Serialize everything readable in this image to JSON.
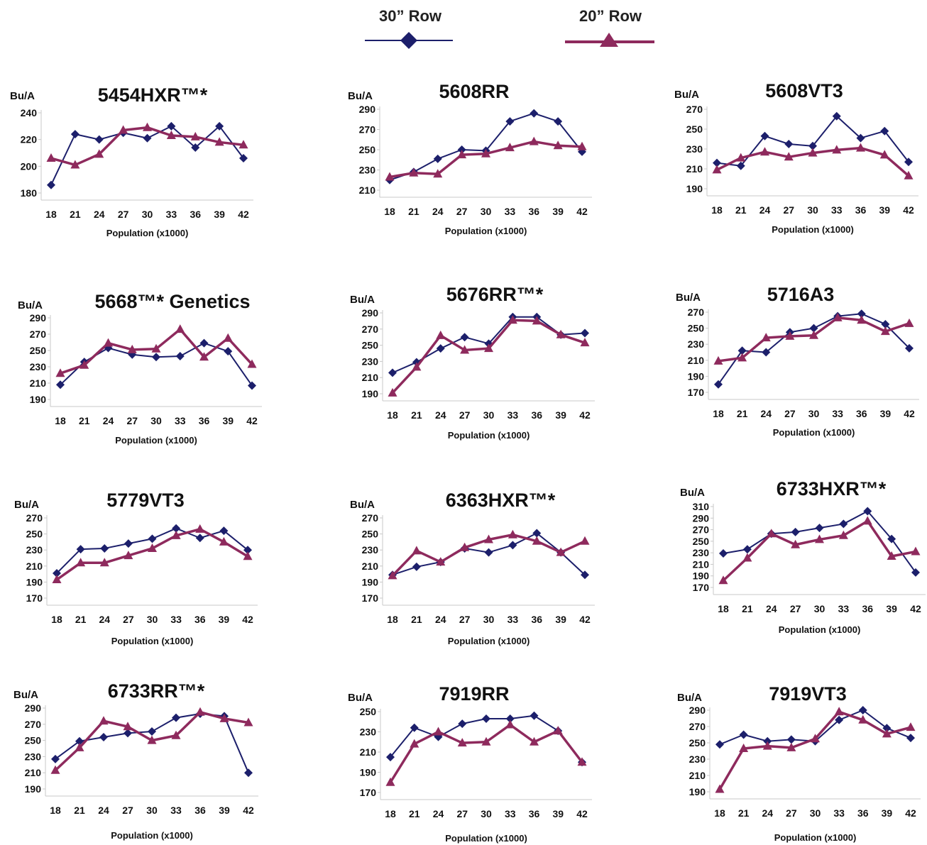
{
  "legend": {
    "items": [
      {
        "label": "30” Row",
        "color": "#1c1f6b",
        "marker": "diamond"
      },
      {
        "label": "20” Row",
        "color": "#8e2a5d",
        "marker": "triangle"
      }
    ]
  },
  "chart_data": [
    {
      "type": "line",
      "title": "5454HXR™*",
      "ylabel": "Bu/A",
      "xlabel": "Population (x1000)",
      "categories": [
        "18",
        "21",
        "24",
        "27",
        "30",
        "33",
        "36",
        "39",
        "42"
      ],
      "yticks": [
        180,
        200,
        220,
        240
      ],
      "ylim": [
        180,
        240
      ],
      "series": [
        {
          "name": "30” Row",
          "values": [
            186,
            224,
            220,
            225,
            221,
            230,
            214,
            230,
            206
          ]
        },
        {
          "name": "20” Row",
          "values": [
            206,
            201,
            209,
            227,
            229,
            223,
            222,
            218,
            216
          ]
        }
      ]
    },
    {
      "type": "line",
      "title": "5608RR",
      "ylabel": "Bu/A",
      "xlabel": "Population (x1000)",
      "categories": [
        "18",
        "21",
        "24",
        "27",
        "30",
        "33",
        "36",
        "39",
        "42"
      ],
      "yticks": [
        210,
        230,
        250,
        270,
        290
      ],
      "ylim": [
        210,
        290
      ],
      "series": [
        {
          "name": "30” Row",
          "values": [
            220,
            228,
            241,
            250,
            249,
            278,
            286,
            278,
            248
          ]
        },
        {
          "name": "20” Row",
          "values": [
            223,
            227,
            226,
            245,
            246,
            252,
            258,
            254,
            253
          ]
        }
      ]
    },
    {
      "type": "line",
      "title": "5608VT3",
      "ylabel": "Bu/A",
      "xlabel": "Population (x1000)",
      "categories": [
        "18",
        "21",
        "24",
        "27",
        "30",
        "33",
        "36",
        "39",
        "42"
      ],
      "yticks": [
        190,
        210,
        230,
        250,
        270
      ],
      "ylim": [
        190,
        270
      ],
      "series": [
        {
          "name": "30” Row",
          "values": [
            216,
            213,
            243,
            235,
            233,
            263,
            241,
            248,
            217
          ]
        },
        {
          "name": "20” Row",
          "values": [
            209,
            221,
            227,
            222,
            226,
            229,
            231,
            224,
            203
          ]
        }
      ]
    },
    {
      "type": "line",
      "title": "5668™* Genetics",
      "ylabel": "Bu/A",
      "xlabel": "Population (x1000)",
      "categories": [
        "18",
        "21",
        "24",
        "27",
        "30",
        "33",
        "36",
        "39",
        "42"
      ],
      "yticks": [
        190,
        210,
        230,
        250,
        270,
        290
      ],
      "ylim": [
        190,
        290
      ],
      "series": [
        {
          "name": "30” Row",
          "values": [
            208,
            236,
            253,
            245,
            242,
            243,
            259,
            249,
            207
          ]
        },
        {
          "name": "20” Row",
          "values": [
            222,
            232,
            259,
            251,
            252,
            276,
            242,
            265,
            233
          ]
        }
      ]
    },
    {
      "type": "line",
      "title": "5676RR™*",
      "ylabel": "Bu/A",
      "xlabel": "Population (x1000)",
      "categories": [
        "18",
        "21",
        "24",
        "27",
        "30",
        "33",
        "36",
        "39",
        "42"
      ],
      "yticks": [
        190,
        210,
        230,
        250,
        270,
        290
      ],
      "ylim": [
        190,
        290
      ],
      "series": [
        {
          "name": "30” Row",
          "values": [
            216,
            229,
            246,
            260,
            252,
            285,
            285,
            263,
            265
          ]
        },
        {
          "name": "20” Row",
          "values": [
            191,
            223,
            262,
            244,
            246,
            281,
            280,
            263,
            253
          ]
        }
      ]
    },
    {
      "type": "line",
      "title": "5716A3",
      "ylabel": "Bu/A",
      "xlabel": "Population (x1000)",
      "categories": [
        "18",
        "21",
        "24",
        "27",
        "30",
        "33",
        "36",
        "39",
        "42"
      ],
      "yticks": [
        170,
        190,
        210,
        230,
        250,
        270
      ],
      "ylim": [
        170,
        270
      ],
      "series": [
        {
          "name": "30” Row",
          "values": [
            180,
            222,
            220,
            245,
            250,
            265,
            268,
            255,
            225
          ]
        },
        {
          "name": "20” Row",
          "values": [
            209,
            213,
            238,
            240,
            241,
            263,
            260,
            246,
            256
          ]
        }
      ]
    },
    {
      "type": "line",
      "title": "5779VT3",
      "ylabel": "Bu/A",
      "xlabel": "Population (x1000)",
      "categories": [
        "18",
        "21",
        "24",
        "27",
        "30",
        "33",
        "36",
        "39",
        "42"
      ],
      "yticks": [
        170,
        190,
        210,
        230,
        250,
        270
      ],
      "ylim": [
        170,
        270
      ],
      "series": [
        {
          "name": "30” Row",
          "values": [
            201,
            231,
            232,
            238,
            244,
            257,
            245,
            254,
            230
          ]
        },
        {
          "name": "20” Row",
          "values": [
            193,
            214,
            214,
            223,
            232,
            248,
            256,
            240,
            222
          ]
        }
      ]
    },
    {
      "type": "line",
      "title": "6363HXR™*",
      "ylabel": "Bu/A",
      "xlabel": "Population (x1000)",
      "categories": [
        "18",
        "21",
        "24",
        "27",
        "30",
        "33",
        "36",
        "39",
        "42"
      ],
      "yticks": [
        170,
        190,
        210,
        230,
        250,
        270
      ],
      "ylim": [
        170,
        270
      ],
      "series": [
        {
          "name": "30” Row",
          "values": [
            199,
            209,
            215,
            232,
            227,
            236,
            251,
            227,
            199
          ]
        },
        {
          "name": "20” Row",
          "values": [
            198,
            229,
            215,
            233,
            243,
            249,
            241,
            227,
            241
          ]
        }
      ]
    },
    {
      "type": "line",
      "title": "6733HXR™*",
      "ylabel": "Bu/A",
      "xlabel": "Population (x1000)",
      "categories": [
        "18",
        "21",
        "24",
        "27",
        "30",
        "33",
        "36",
        "39",
        "42"
      ],
      "yticks": [
        170,
        190,
        210,
        230,
        250,
        270,
        290,
        310
      ],
      "ylim": [
        170,
        310
      ],
      "series": [
        {
          "name": "30” Row",
          "values": [
            229,
            236,
            263,
            266,
            273,
            280,
            302,
            254,
            196
          ]
        },
        {
          "name": "20” Row",
          "values": [
            182,
            221,
            263,
            244,
            253,
            260,
            285,
            224,
            232
          ]
        }
      ]
    },
    {
      "type": "line",
      "title": "6733RR™*",
      "ylabel": "Bu/A",
      "xlabel": "Population (x1000)",
      "categories": [
        "18",
        "21",
        "24",
        "27",
        "30",
        "33",
        "36",
        "39",
        "42"
      ],
      "yticks": [
        190,
        210,
        230,
        250,
        270,
        290
      ],
      "ylim": [
        190,
        290
      ],
      "series": [
        {
          "name": "30” Row",
          "values": [
            227,
            249,
            254,
            259,
            261,
            278,
            283,
            280,
            210
          ]
        },
        {
          "name": "20” Row",
          "values": [
            213,
            241,
            274,
            267,
            250,
            256,
            285,
            277,
            272
          ]
        }
      ]
    },
    {
      "type": "line",
      "title": "7919RR",
      "ylabel": "Bu/A",
      "xlabel": "Population (x1000)",
      "categories": [
        "18",
        "21",
        "24",
        "27",
        "30",
        "33",
        "36",
        "39",
        "42"
      ],
      "yticks": [
        170,
        190,
        210,
        230,
        250
      ],
      "ylim": [
        170,
        250
      ],
      "series": [
        {
          "name": "30” Row",
          "values": [
            205,
            234,
            225,
            238,
            243,
            243,
            246,
            231,
            200
          ]
        },
        {
          "name": "20” Row",
          "values": [
            180,
            218,
            230,
            219,
            220,
            237,
            220,
            231,
            200
          ]
        }
      ]
    },
    {
      "type": "line",
      "title": "7919VT3",
      "ylabel": "Bu/A",
      "xlabel": "Population (x1000)",
      "categories": [
        "18",
        "21",
        "24",
        "27",
        "30",
        "33",
        "36",
        "39",
        "42"
      ],
      "yticks": [
        190,
        210,
        230,
        250,
        270,
        290
      ],
      "ylim": [
        190,
        290
      ],
      "series": [
        {
          "name": "30” Row",
          "values": [
            248,
            260,
            252,
            254,
            252,
            278,
            290,
            268,
            256
          ]
        },
        {
          "name": "20” Row",
          "values": [
            193,
            243,
            246,
            244,
            255,
            288,
            278,
            261,
            269
          ]
        }
      ]
    }
  ]
}
